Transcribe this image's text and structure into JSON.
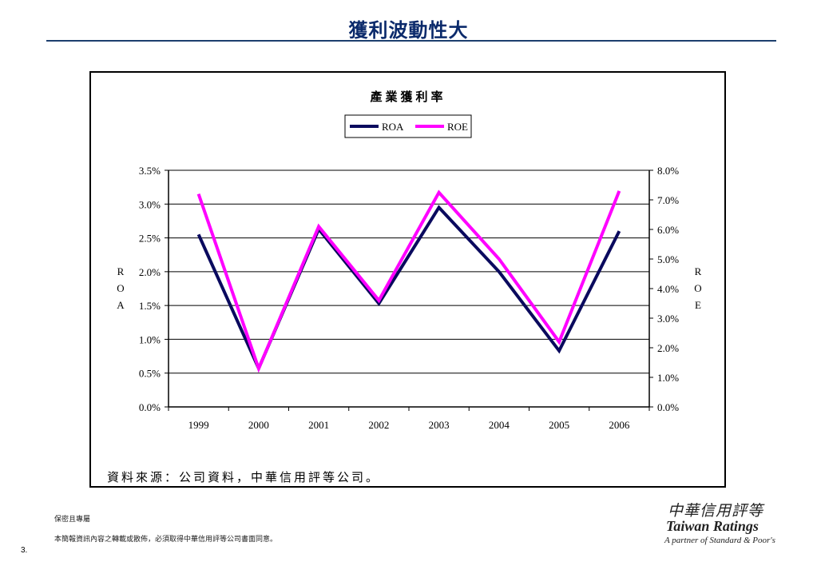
{
  "page": {
    "title": "獲利波動性大",
    "source_note": "資料來源：公司資料，中華信用評等公司。",
    "footer_confidential": "保密且專屬",
    "footer_notice": "本簡報資訊內容之轉載或散佈，必須取得中華信用評等公司書面同意。",
    "page_number": "3."
  },
  "logo": {
    "chinese": "中華信用評等",
    "english": "Taiwan Ratings",
    "partner": "A partner of Standard & Poor's"
  },
  "chart_data": {
    "type": "line",
    "title": "產業獲利率",
    "categories": [
      "1999",
      "2000",
      "2001",
      "2002",
      "2003",
      "2004",
      "2005",
      "2006"
    ],
    "series": [
      {
        "name": "ROA",
        "axis": "left",
        "color": "#0a0a5e",
        "values": [
          2.55,
          0.57,
          2.63,
          1.53,
          2.95,
          2.0,
          0.83,
          2.6
        ]
      },
      {
        "name": "ROE",
        "axis": "right",
        "color": "#ff00ff",
        "values": [
          7.2,
          1.3,
          6.1,
          3.6,
          7.25,
          5.0,
          2.2,
          7.3
        ]
      }
    ],
    "left_axis": {
      "label": "ROA",
      "ylim": [
        0,
        3.5
      ],
      "ticks": [
        "0.0%",
        "0.5%",
        "1.0%",
        "1.5%",
        "2.0%",
        "2.5%",
        "3.0%",
        "3.5%"
      ]
    },
    "right_axis": {
      "label": "ROE",
      "ylim": [
        0,
        8
      ],
      "ticks": [
        "0.0%",
        "1.0%",
        "2.0%",
        "3.0%",
        "4.0%",
        "5.0%",
        "6.0%",
        "7.0%",
        "8.0%"
      ]
    },
    "grid": true,
    "legend": "top-center"
  }
}
